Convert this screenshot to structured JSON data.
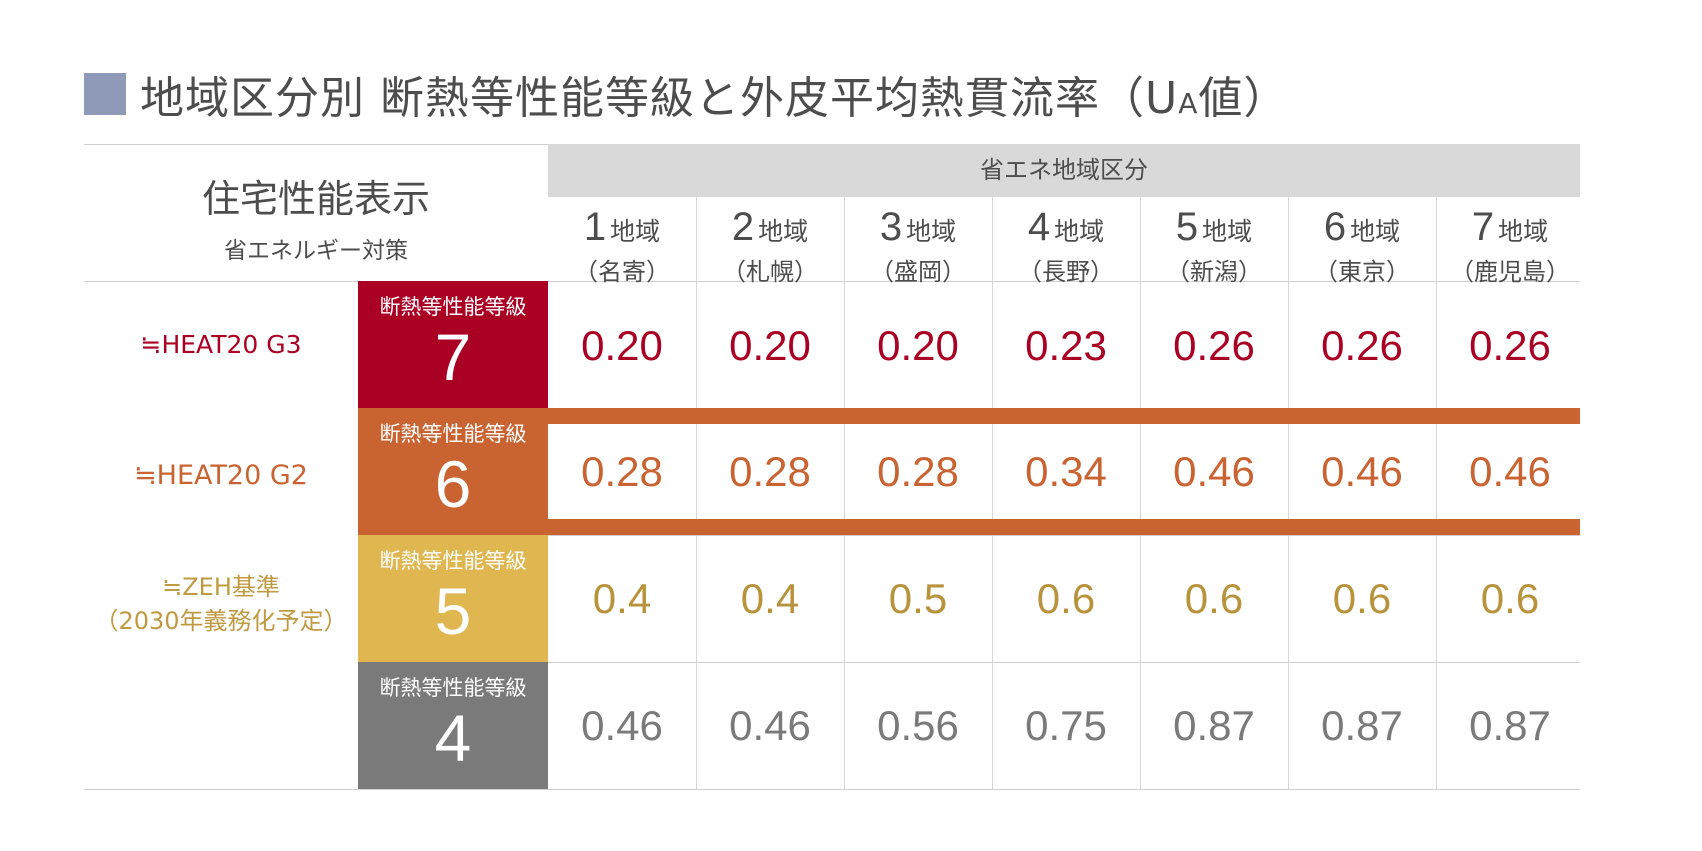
{
  "title": {
    "main": "地域区分別 断熱等性能等級と外皮平均熱貫流率（U",
    "sub": "A",
    "suffix": "値）"
  },
  "colors": {
    "title_square": "#8f9ab8",
    "g7": "#a90024",
    "g6": "#c96432",
    "g5": "#e0b650",
    "g4": "#7a7a7a",
    "region_band": "#d9d9d9"
  },
  "header": {
    "spec_main": "住宅性能表示",
    "spec_sub": "省エネルギー対策",
    "region_band": "省エネ地域区分"
  },
  "regions": [
    {
      "num": "1",
      "label": "地域",
      "city": "（名寄）"
    },
    {
      "num": "2",
      "label": "地域",
      "city": "（札幌）"
    },
    {
      "num": "3",
      "label": "地域",
      "city": "（盛岡）"
    },
    {
      "num": "4",
      "label": "地域",
      "city": "（長野）"
    },
    {
      "num": "5",
      "label": "地域",
      "city": "（新潟）"
    },
    {
      "num": "6",
      "label": "地域",
      "city": "（東京）"
    },
    {
      "num": "7",
      "label": "地域",
      "city": "（鹿児島）"
    }
  ],
  "grades": [
    {
      "label": "断熱等性能等級",
      "level": "7",
      "tag": "≒HEAT20 G3",
      "tag2": "",
      "values": [
        "0.20",
        "0.20",
        "0.20",
        "0.23",
        "0.26",
        "0.26",
        "0.26"
      ]
    },
    {
      "label": "断熱等性能等級",
      "level": "6",
      "tag": "≒HEAT20 G2",
      "tag2": "",
      "values": [
        "0.28",
        "0.28",
        "0.28",
        "0.34",
        "0.46",
        "0.46",
        "0.46"
      ]
    },
    {
      "label": "断熱等性能等級",
      "level": "5",
      "tag": "≒ZEH基準",
      "tag2": "（2030年義務化予定）",
      "values": [
        "0.4",
        "0.4",
        "0.5",
        "0.6",
        "0.6",
        "0.6",
        "0.6"
      ]
    },
    {
      "label": "断熱等性能等級",
      "level": "4",
      "tag": "",
      "tag2": "",
      "values": [
        "0.46",
        "0.46",
        "0.56",
        "0.75",
        "0.87",
        "0.87",
        "0.87"
      ]
    }
  ]
}
